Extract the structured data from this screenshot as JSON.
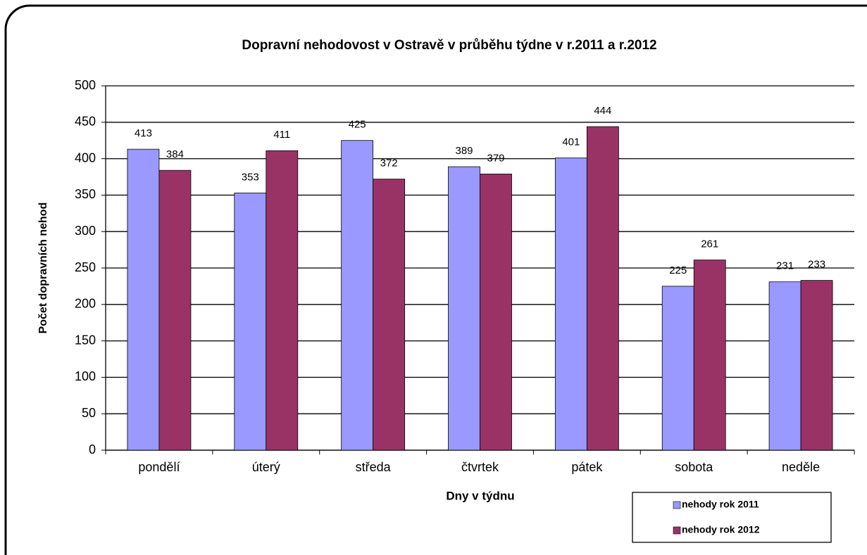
{
  "chart_data": {
    "type": "bar",
    "title": "Dopravní nehodovost  v Ostravě  v průběhu týdne  v r.2011  a r.2012",
    "x_label": "Dny v týdnu",
    "y_label": "Počet dopravních nehod",
    "categories": [
      "pondělí",
      "úterý",
      "středa",
      "čtvrtek",
      "pátek",
      "sobota",
      "neděle"
    ],
    "series": [
      {
        "name": "nehody rok 2011",
        "color": "#9999ff",
        "values": [
          413,
          353,
          425,
          389,
          401,
          225,
          231
        ]
      },
      {
        "name": "nehody rok 2012",
        "color": "#993366",
        "values": [
          384,
          411,
          372,
          379,
          444,
          261,
          233
        ]
      }
    ],
    "ylim": [
      0,
      500
    ],
    "yticks": [
      0,
      50,
      100,
      150,
      200,
      250,
      300,
      350,
      400,
      450,
      500
    ],
    "grid": true,
    "legend": "bottom-right"
  }
}
